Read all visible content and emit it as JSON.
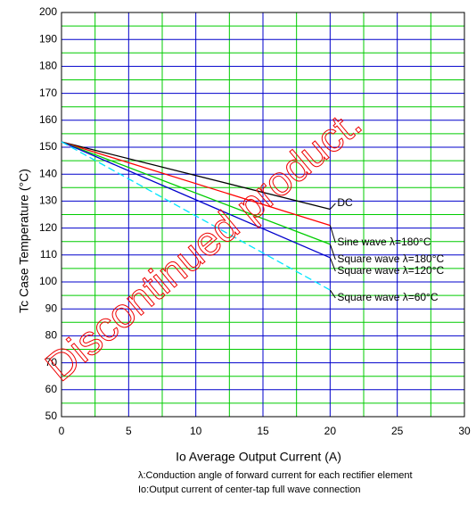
{
  "chart_data": {
    "type": "line",
    "ylabel": "Tc   Case Temperature   (°C)",
    "xlabel": "Io      Average Output Current      (A)",
    "notes": [
      "λ:Conduction angle of forward current for each rectifier element",
      "Io:Output current of center-tap full wave connection"
    ],
    "watermark": "Discontinued product.",
    "x": [
      0,
      20
    ],
    "series": [
      {
        "name": "DC",
        "color": "#000000",
        "values": [
          152,
          127
        ]
      },
      {
        "name": "Sine wave  λ=180°C",
        "color": "#ff0000",
        "values": [
          152,
          121
        ]
      },
      {
        "name": "Square wave  λ=180°C",
        "color": "#00cc00",
        "values": [
          152,
          114
        ]
      },
      {
        "name": "Square wave  λ=120°C",
        "color": "#0000cc",
        "values": [
          152,
          109
        ]
      },
      {
        "name": "Square wave  λ=60°C",
        "color": "#00e5ff",
        "values": [
          152,
          97
        ],
        "dashed": true
      }
    ],
    "xlim": [
      0,
      30
    ],
    "xticks": [
      0,
      5,
      10,
      15,
      20,
      25,
      30
    ],
    "xminor": [
      2.5,
      7.5,
      12.5,
      17.5,
      22.5,
      27.5
    ],
    "ylim": [
      50,
      200
    ],
    "yticks": [
      50,
      60,
      70,
      80,
      90,
      100,
      110,
      120,
      130,
      140,
      150,
      160,
      170,
      180,
      190,
      200
    ],
    "yminor": [
      55,
      65,
      75,
      85,
      95,
      105,
      115,
      125,
      135,
      145,
      155,
      165,
      175,
      185,
      195
    ],
    "major_grid_color": "#0000cc",
    "minor_grid_color": "#00cc00"
  }
}
